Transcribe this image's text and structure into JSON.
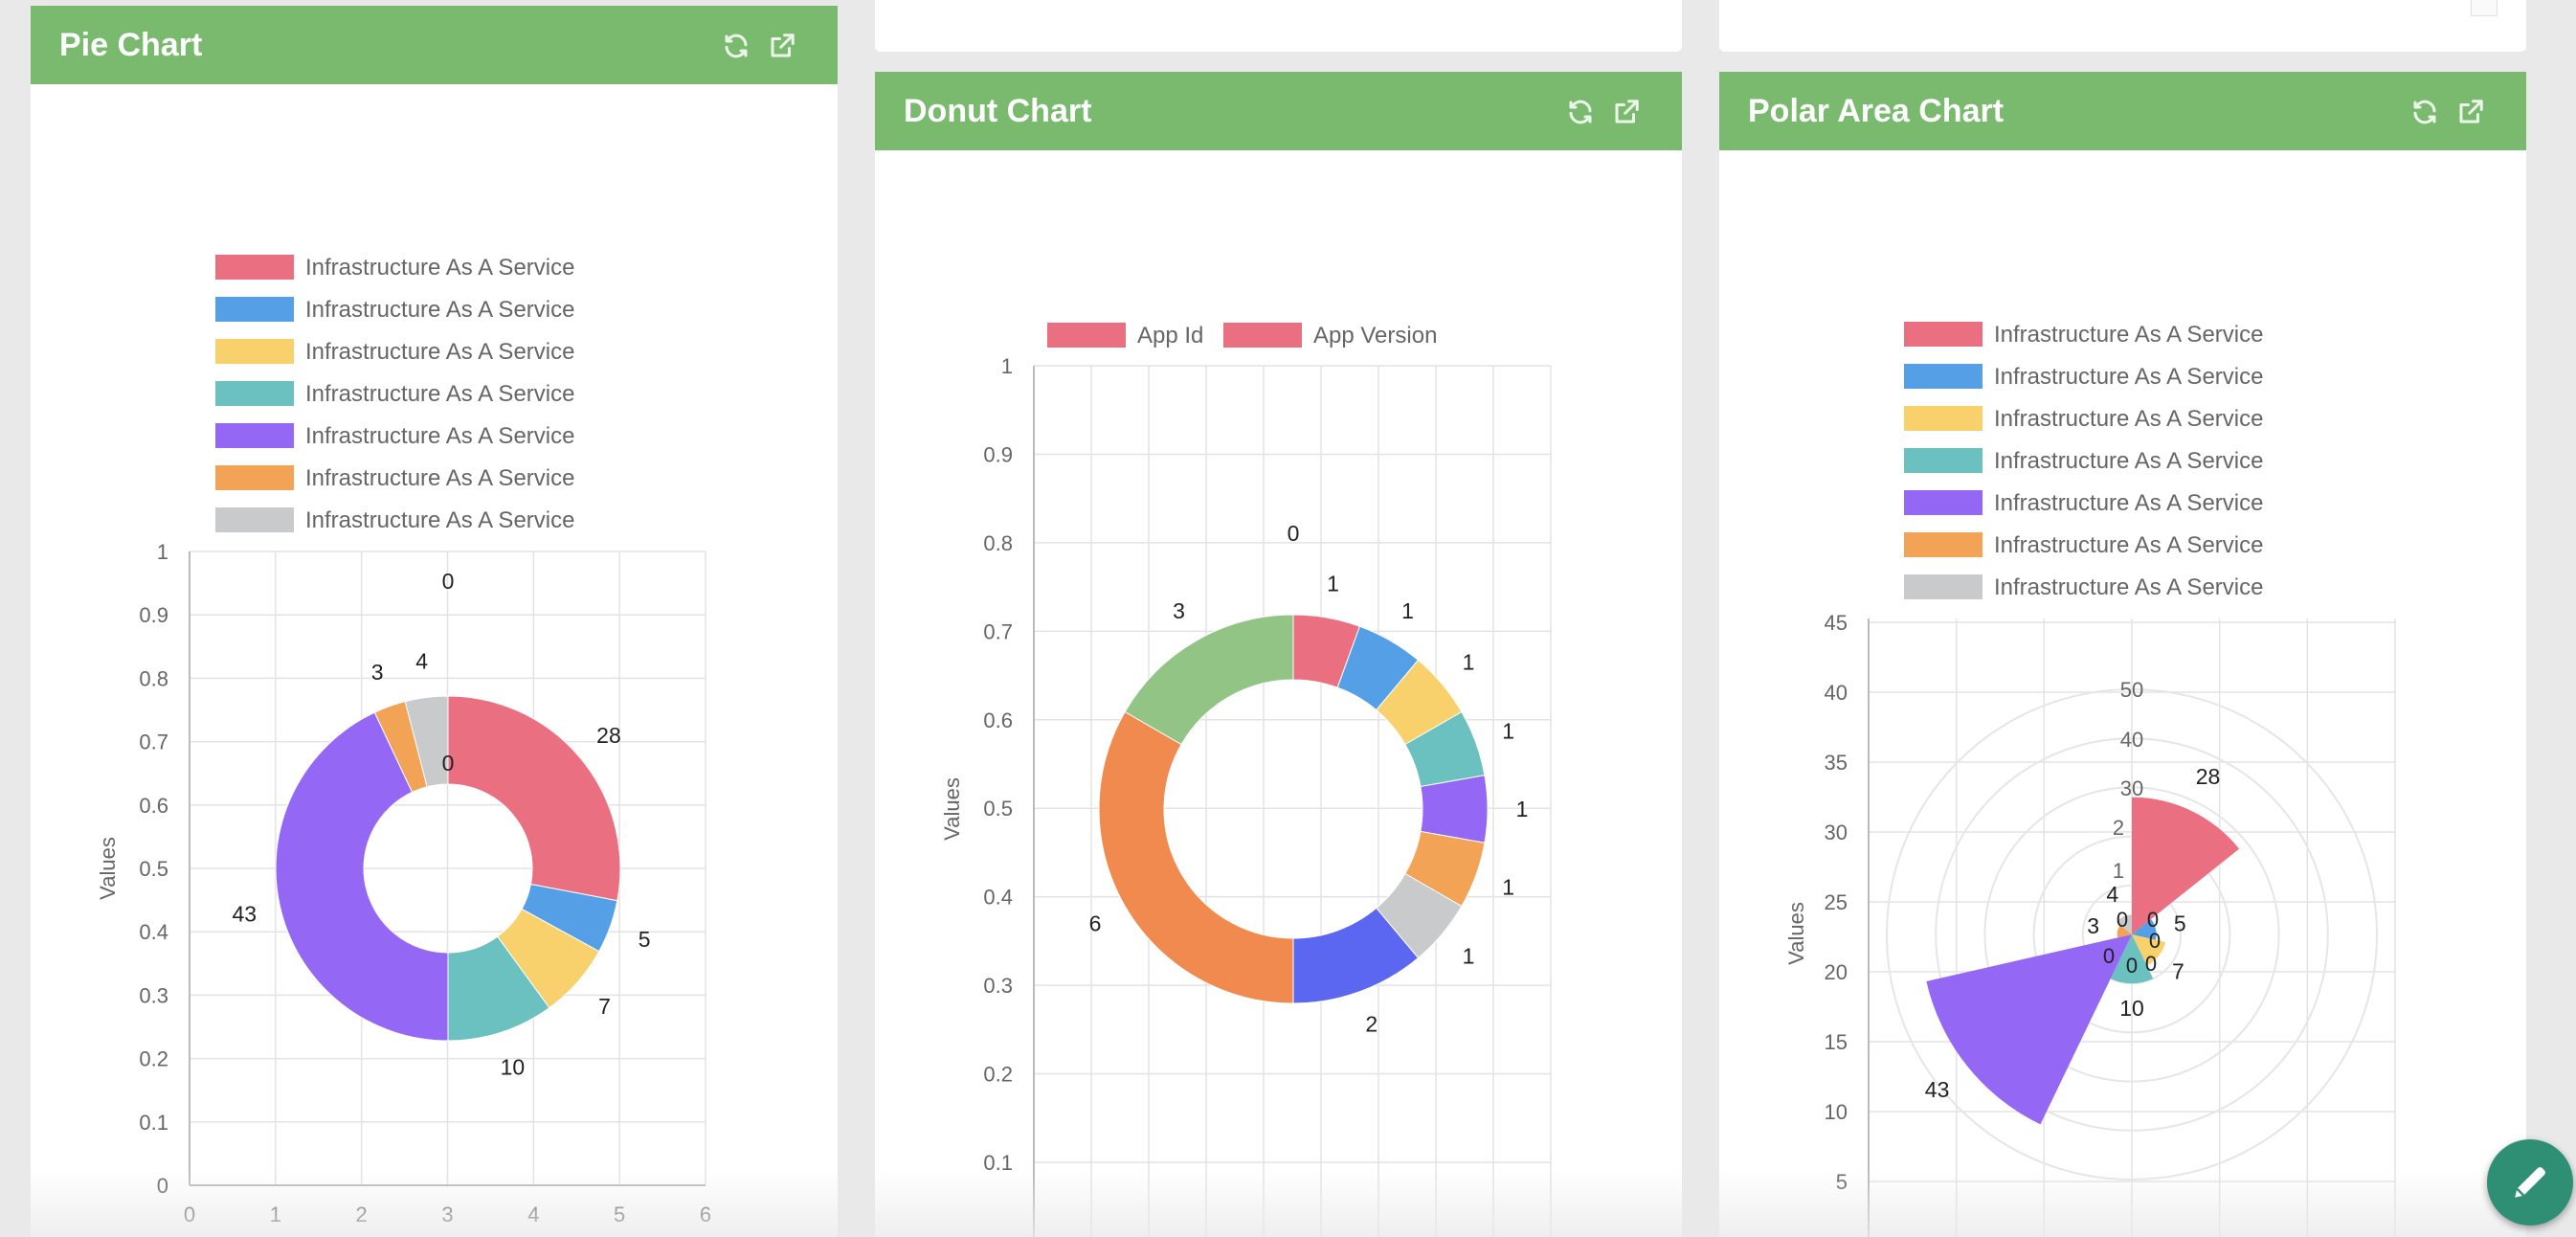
{
  "colors": {
    "header": "#7aba6f",
    "palette": [
      "#ea6f81",
      "#559fe6",
      "#f8d06c",
      "#6bc0c0",
      "#9467f4",
      "#f2a355",
      "#c9cacb"
    ],
    "grid": "#e3e3e3"
  },
  "header_icons": [
    "refresh-icon",
    "open-external-icon"
  ],
  "fab": {
    "icon": "pencil-icon"
  },
  "pie_panel": {
    "title": "Pie Chart",
    "ylabel": "Values",
    "legend": [
      "Infrastructure As A Service",
      "Infrastructure As A Service",
      "Infrastructure As A Service",
      "Infrastructure As A Service",
      "Infrastructure As A Service",
      "Infrastructure As A Service",
      "Infrastructure As A Service"
    ]
  },
  "donut_panel": {
    "title": "Donut Chart",
    "ylabel": "Values",
    "legend": [
      "App Id",
      "App Version"
    ]
  },
  "polar_panel": {
    "title": "Polar Area Chart",
    "ylabel": "Values",
    "legend": [
      "Infrastructure As A Service",
      "Infrastructure As A Service",
      "Infrastructure As A Service",
      "Infrastructure As A Service",
      "Infrastructure As A Service",
      "Infrastructure As A Service",
      "Infrastructure As A Service"
    ]
  },
  "chart_data": [
    {
      "type": "pie",
      "variant": "doughnut",
      "labels": [
        "Infrastructure As A Service",
        "Infrastructure As A Service",
        "Infrastructure As A Service",
        "Infrastructure As A Service",
        "Infrastructure As A Service",
        "Infrastructure As A Service",
        "Infrastructure As A Service"
      ],
      "values": [
        28,
        5,
        7,
        10,
        43,
        3,
        4
      ],
      "extra_labels": [
        "0",
        "0"
      ],
      "colors": [
        "#ea6f81",
        "#559fe6",
        "#f8d06c",
        "#6bc0c0",
        "#9467f4",
        "#f2a355",
        "#c9cacb"
      ],
      "ylabel": "Values",
      "xlim": [
        0,
        6
      ],
      "ylim": [
        0,
        1
      ],
      "xticks": [
        "0",
        "1",
        "2",
        "3",
        "4",
        "5",
        "6"
      ],
      "yticks": [
        "0",
        "0.1",
        "0.2",
        "0.3",
        "0.4",
        "0.5",
        "0.6",
        "0.7",
        "0.8",
        "0.9",
        "1"
      ],
      "grid": true,
      "legend_position": "top"
    },
    {
      "type": "pie",
      "variant": "doughnut",
      "series": [
        {
          "name": "App Id"
        },
        {
          "name": "App Version"
        }
      ],
      "values": [
        1,
        1,
        1,
        1,
        1,
        1,
        1,
        2,
        6,
        3
      ],
      "extra_labels": [
        "0"
      ],
      "colors": [
        "#ea6f81",
        "#559fe6",
        "#f8d06c",
        "#6bc0c0",
        "#9467f4",
        "#f2a355",
        "#c9cacb",
        "#5b66f1",
        "#f08a4f",
        "#92c585"
      ],
      "ylabel": "Values",
      "ylim": [
        0,
        1
      ],
      "yticks": [
        "0.1",
        "0.2",
        "0.3",
        "0.4",
        "0.5",
        "0.6",
        "0.7",
        "0.8",
        "0.9",
        "1"
      ],
      "grid": true,
      "legend_position": "top"
    },
    {
      "type": "polar",
      "labels": [
        "Infrastructure As A Service",
        "Infrastructure As A Service",
        "Infrastructure As A Service",
        "Infrastructure As A Service",
        "Infrastructure As A Service",
        "Infrastructure As A Service",
        "Infrastructure As A Service"
      ],
      "values": [
        28,
        5,
        7,
        10,
        43,
        3,
        4
      ],
      "extra_labels": [
        "0",
        "0",
        "0",
        "0",
        "0",
        "0"
      ],
      "colors": [
        "#ea6f81",
        "#559fe6",
        "#f8d06c",
        "#6bc0c0",
        "#9467f4",
        "#f2a355",
        "#c9cacb"
      ],
      "ylabel": "Values",
      "yticks": [
        "5",
        "10",
        "15",
        "20",
        "25",
        "30",
        "35",
        "40",
        "45"
      ],
      "rticks": [
        "1",
        "2",
        "30",
        "40",
        "50"
      ],
      "grid": true,
      "legend_position": "top"
    }
  ]
}
